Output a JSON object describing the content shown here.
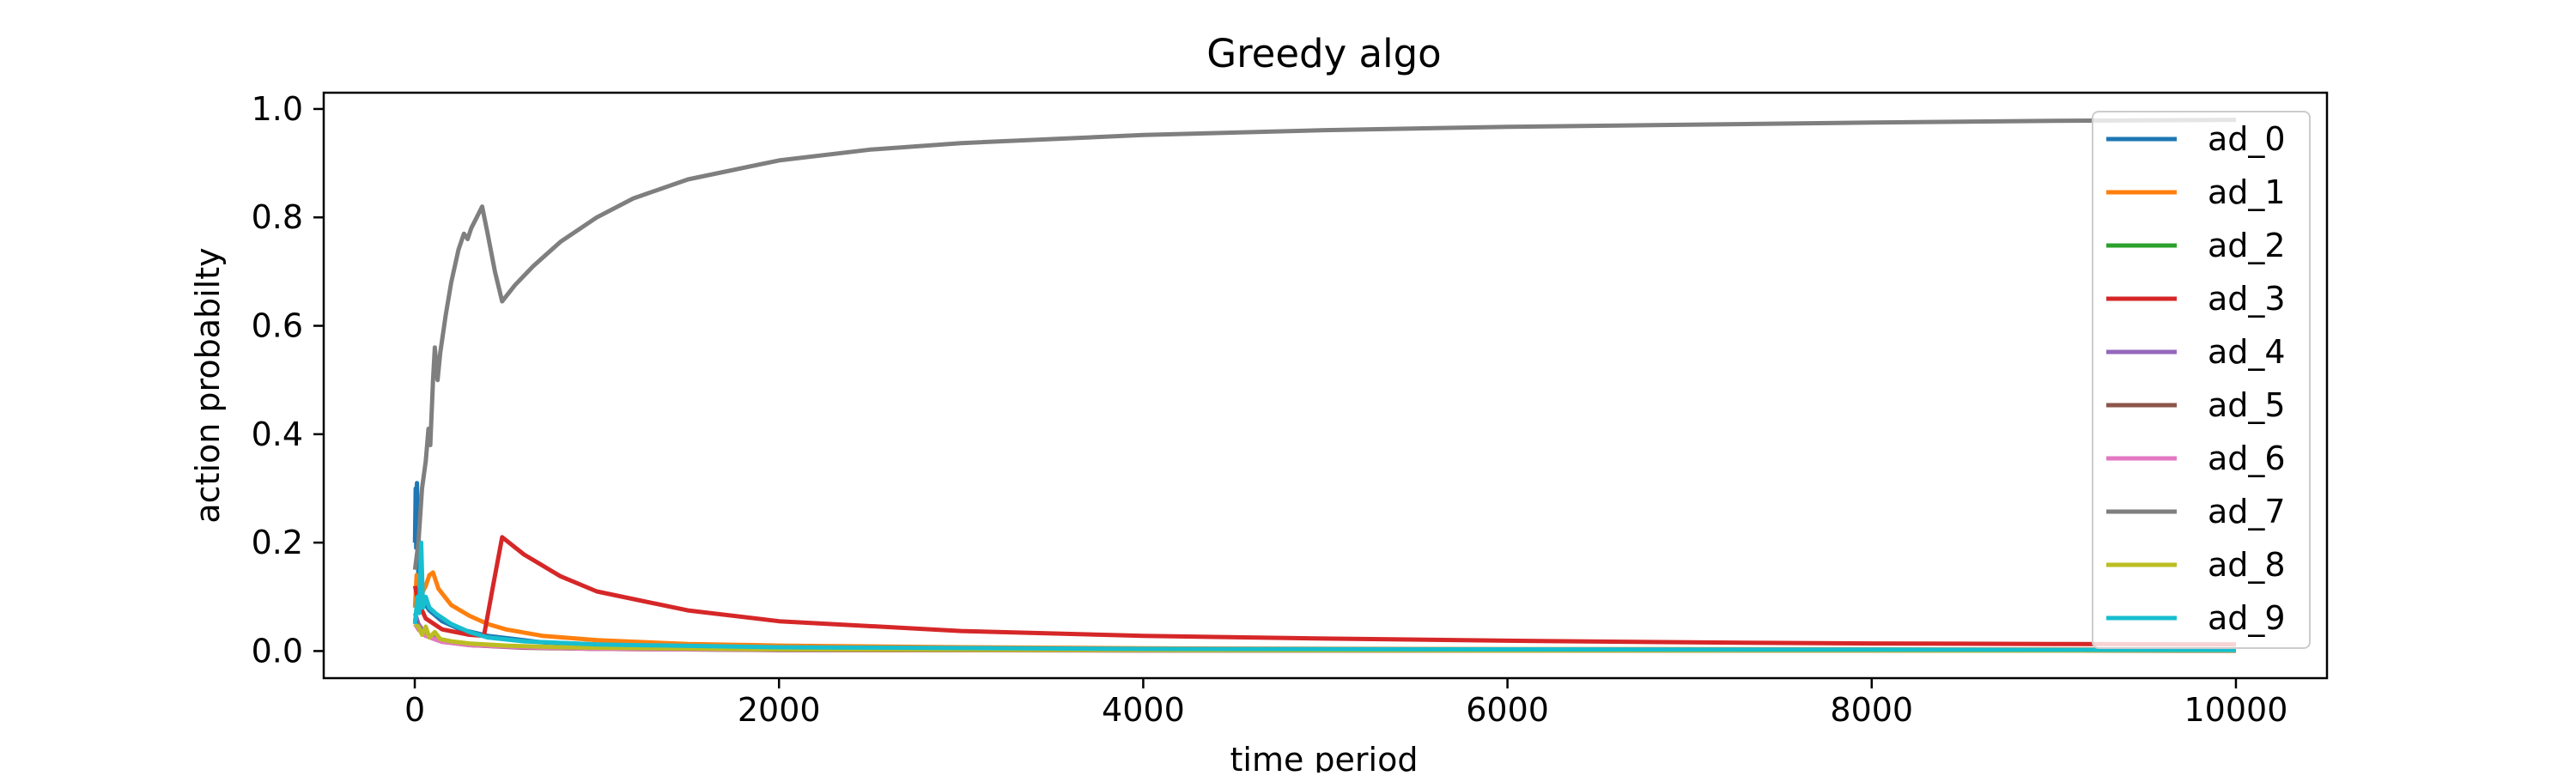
{
  "chart_data": {
    "type": "line",
    "title": "Greedy algo",
    "xlabel": "time period",
    "ylabel": "action probabilty",
    "xlim": [
      -500,
      10500
    ],
    "ylim": [
      -0.05,
      1.03
    ],
    "grid": false,
    "legend_position": "right",
    "x_ticks": [
      0,
      2000,
      4000,
      6000,
      8000,
      10000
    ],
    "x_tick_labels": [
      "0",
      "2000",
      "4000",
      "6000",
      "8000",
      "10000"
    ],
    "y_ticks": [
      0.0,
      0.2,
      0.4,
      0.6,
      0.8,
      1.0
    ],
    "y_tick_labels": [
      "0.0",
      "0.2",
      "0.4",
      "0.6",
      "0.8",
      "1.0"
    ],
    "series": [
      {
        "name": "ad_0",
        "color": "#1f77b4",
        "points": [
          [
            1,
            0.2
          ],
          [
            5,
            0.3
          ],
          [
            8,
            0.19
          ],
          [
            12,
            0.31
          ],
          [
            20,
            0.13
          ],
          [
            40,
            0.095
          ],
          [
            80,
            0.075
          ],
          [
            150,
            0.055
          ],
          [
            250,
            0.04
          ],
          [
            400,
            0.028
          ],
          [
            700,
            0.016
          ],
          [
            1000,
            0.012
          ],
          [
            2000,
            0.006
          ],
          [
            4000,
            0.003
          ],
          [
            6000,
            0.002
          ],
          [
            8000,
            0.0015
          ],
          [
            10000,
            0.0012
          ]
        ]
      },
      {
        "name": "ad_1",
        "color": "#ff7f0e",
        "points": [
          [
            1,
            0.08
          ],
          [
            10,
            0.14
          ],
          [
            30,
            0.1
          ],
          [
            60,
            0.12
          ],
          [
            80,
            0.14
          ],
          [
            100,
            0.145
          ],
          [
            130,
            0.115
          ],
          [
            200,
            0.085
          ],
          [
            300,
            0.065
          ],
          [
            400,
            0.05
          ],
          [
            500,
            0.04
          ],
          [
            700,
            0.028
          ],
          [
            1000,
            0.02
          ],
          [
            1500,
            0.013
          ],
          [
            2000,
            0.01
          ],
          [
            3000,
            0.007
          ],
          [
            4000,
            0.005
          ],
          [
            6000,
            0.0035
          ],
          [
            8000,
            0.003
          ],
          [
            10000,
            0.0025
          ]
        ]
      },
      {
        "name": "ad_2",
        "color": "#2ca02c",
        "points": [
          [
            1,
            0.06
          ],
          [
            20,
            0.045
          ],
          [
            60,
            0.03
          ],
          [
            150,
            0.02
          ],
          [
            300,
            0.013
          ],
          [
            600,
            0.008
          ],
          [
            1000,
            0.005
          ],
          [
            2000,
            0.003
          ],
          [
            4000,
            0.0015
          ],
          [
            6000,
            0.001
          ],
          [
            8000,
            0.0008
          ],
          [
            10000,
            0.0006
          ]
        ]
      },
      {
        "name": "ad_3",
        "color": "#d62728",
        "points": [
          [
            1,
            0.12
          ],
          [
            20,
            0.09
          ],
          [
            60,
            0.06
          ],
          [
            150,
            0.04
          ],
          [
            300,
            0.03
          ],
          [
            380,
            0.028
          ],
          [
            430,
            0.12
          ],
          [
            480,
            0.21
          ],
          [
            600,
            0.178
          ],
          [
            800,
            0.138
          ],
          [
            1000,
            0.11
          ],
          [
            1500,
            0.075
          ],
          [
            2000,
            0.055
          ],
          [
            3000,
            0.037
          ],
          [
            4000,
            0.028
          ],
          [
            5000,
            0.023
          ],
          [
            6000,
            0.019
          ],
          [
            7000,
            0.016
          ],
          [
            8000,
            0.014
          ],
          [
            9000,
            0.013
          ],
          [
            10000,
            0.012
          ]
        ]
      },
      {
        "name": "ad_4",
        "color": "#9467bd",
        "points": [
          [
            1,
            0.07
          ],
          [
            20,
            0.05
          ],
          [
            60,
            0.03
          ],
          [
            150,
            0.018
          ],
          [
            300,
            0.011
          ],
          [
            600,
            0.007
          ],
          [
            1000,
            0.004
          ],
          [
            2000,
            0.002
          ],
          [
            4000,
            0.0012
          ],
          [
            6000,
            0.0008
          ],
          [
            8000,
            0.0006
          ],
          [
            10000,
            0.0005
          ]
        ]
      },
      {
        "name": "ad_5",
        "color": "#8c564b",
        "points": [
          [
            1,
            0.06
          ],
          [
            20,
            0.04
          ],
          [
            60,
            0.028
          ],
          [
            150,
            0.017
          ],
          [
            300,
            0.011
          ],
          [
            600,
            0.006
          ],
          [
            1000,
            0.004
          ],
          [
            2000,
            0.002
          ],
          [
            4000,
            0.0012
          ],
          [
            6000,
            0.0008
          ],
          [
            8000,
            0.0006
          ],
          [
            10000,
            0.0005
          ]
        ]
      },
      {
        "name": "ad_6",
        "color": "#e377c2",
        "points": [
          [
            1,
            0.05
          ],
          [
            20,
            0.04
          ],
          [
            60,
            0.028
          ],
          [
            150,
            0.017
          ],
          [
            300,
            0.011
          ],
          [
            600,
            0.007
          ],
          [
            1000,
            0.004
          ],
          [
            2000,
            0.0025
          ],
          [
            4000,
            0.0015
          ],
          [
            6000,
            0.001
          ],
          [
            8000,
            0.0008
          ],
          [
            10000,
            0.0006
          ]
        ]
      },
      {
        "name": "ad_7",
        "color": "#7f7f7f",
        "points": [
          [
            1,
            0.15
          ],
          [
            20,
            0.2
          ],
          [
            40,
            0.3
          ],
          [
            60,
            0.35
          ],
          [
            75,
            0.41
          ],
          [
            85,
            0.38
          ],
          [
            100,
            0.5
          ],
          [
            110,
            0.56
          ],
          [
            125,
            0.5
          ],
          [
            140,
            0.55
          ],
          [
            170,
            0.62
          ],
          [
            200,
            0.68
          ],
          [
            240,
            0.74
          ],
          [
            270,
            0.77
          ],
          [
            290,
            0.76
          ],
          [
            310,
            0.78
          ],
          [
            340,
            0.8
          ],
          [
            370,
            0.82
          ],
          [
            400,
            0.77
          ],
          [
            440,
            0.7
          ],
          [
            480,
            0.645
          ],
          [
            550,
            0.675
          ],
          [
            650,
            0.71
          ],
          [
            800,
            0.755
          ],
          [
            1000,
            0.8
          ],
          [
            1200,
            0.835
          ],
          [
            1500,
            0.87
          ],
          [
            2000,
            0.905
          ],
          [
            2500,
            0.925
          ],
          [
            3000,
            0.937
          ],
          [
            4000,
            0.952
          ],
          [
            5000,
            0.961
          ],
          [
            6000,
            0.967
          ],
          [
            7000,
            0.971
          ],
          [
            8000,
            0.975
          ],
          [
            9000,
            0.978
          ],
          [
            10000,
            0.98
          ]
        ]
      },
      {
        "name": "ad_8",
        "color": "#bcbd22",
        "points": [
          [
            1,
            0.05
          ],
          [
            20,
            0.045
          ],
          [
            40,
            0.03
          ],
          [
            60,
            0.045
          ],
          [
            80,
            0.025
          ],
          [
            110,
            0.035
          ],
          [
            140,
            0.022
          ],
          [
            200,
            0.018
          ],
          [
            300,
            0.014
          ],
          [
            500,
            0.01
          ],
          [
            800,
            0.007
          ],
          [
            1000,
            0.006
          ],
          [
            2000,
            0.003
          ],
          [
            4000,
            0.0018
          ],
          [
            6000,
            0.0012
          ],
          [
            8000,
            0.001
          ],
          [
            10000,
            0.0008
          ]
        ]
      },
      {
        "name": "ad_9",
        "color": "#17becf",
        "points": [
          [
            1,
            0.05
          ],
          [
            15,
            0.1
          ],
          [
            25,
            0.07
          ],
          [
            35,
            0.2
          ],
          [
            45,
            0.08
          ],
          [
            60,
            0.1
          ],
          [
            80,
            0.08
          ],
          [
            120,
            0.068
          ],
          [
            200,
            0.05
          ],
          [
            300,
            0.035
          ],
          [
            400,
            0.025
          ],
          [
            600,
            0.018
          ],
          [
            1000,
            0.012
          ],
          [
            2000,
            0.007
          ],
          [
            4000,
            0.004
          ],
          [
            6000,
            0.003
          ],
          [
            8000,
            0.0025
          ],
          [
            10000,
            0.002
          ]
        ]
      }
    ]
  }
}
